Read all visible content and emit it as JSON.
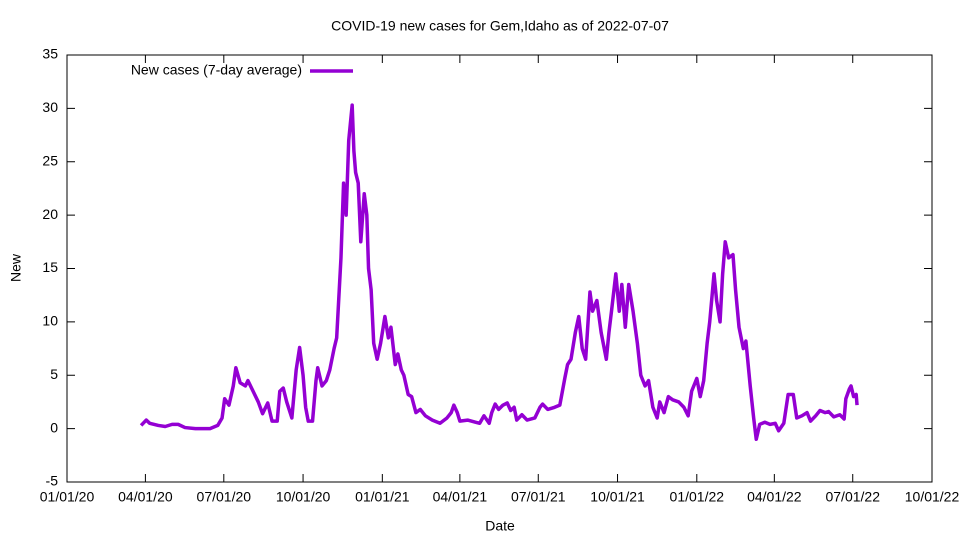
{
  "chart_data": {
    "type": "line",
    "title": "COVID-19 new cases for Gem,Idaho as of 2022-07-07",
    "x_label": "Date",
    "y_label": "New",
    "legend": "upper left",
    "xlim": [
      "2020-01-01",
      "2022-10-01"
    ],
    "xticks": [
      {
        "value": "2020-01-01",
        "label": "01/01/20"
      },
      {
        "value": "2020-04-01",
        "label": "04/01/20"
      },
      {
        "value": "2020-07-01",
        "label": "07/01/20"
      },
      {
        "value": "2020-10-01",
        "label": "10/01/20"
      },
      {
        "value": "2021-01-01",
        "label": "01/01/21"
      },
      {
        "value": "2021-04-01",
        "label": "04/01/21"
      },
      {
        "value": "2021-07-01",
        "label": "07/01/21"
      },
      {
        "value": "2021-10-01",
        "label": "10/01/21"
      },
      {
        "value": "2022-01-01",
        "label": "01/01/22"
      },
      {
        "value": "2022-04-01",
        "label": "04/01/22"
      },
      {
        "value": "2022-07-01",
        "label": "07/01/22"
      },
      {
        "value": "2022-10-01",
        "label": "10/01/22"
      }
    ],
    "ylim": [
      -5,
      35
    ],
    "yticks": [
      -5,
      0,
      5,
      10,
      15,
      20,
      25,
      30,
      35
    ],
    "x": [
      "2020-03-27",
      "2020-04-02",
      "2020-04-06",
      "2020-04-16",
      "2020-04-24",
      "2020-05-02",
      "2020-05-09",
      "2020-05-17",
      "2020-05-29",
      "2020-06-15",
      "2020-06-24",
      "2020-06-29",
      "2020-07-02",
      "2020-07-07",
      "2020-07-12",
      "2020-07-15",
      "2020-07-20",
      "2020-07-26",
      "2020-07-29",
      "2020-08-04",
      "2020-08-10",
      "2020-08-15",
      "2020-08-21",
      "2020-08-26",
      "2020-09-01",
      "2020-09-04",
      "2020-09-08",
      "2020-09-12",
      "2020-09-18",
      "2020-09-23",
      "2020-09-27",
      "2020-10-01",
      "2020-10-04",
      "2020-10-07",
      "2020-10-12",
      "2020-10-16",
      "2020-10-18",
      "2020-10-23",
      "2020-10-28",
      "2020-11-01",
      "2020-11-06",
      "2020-11-09",
      "2020-11-14",
      "2020-11-17",
      "2020-11-20",
      "2020-11-23",
      "2020-11-27",
      "2020-11-29",
      "2020-12-01",
      "2020-12-04",
      "2020-12-07",
      "2020-12-11",
      "2020-12-14",
      "2020-12-16",
      "2020-12-19",
      "2020-12-22",
      "2020-12-26",
      "2020-12-30",
      "2021-01-04",
      "2021-01-08",
      "2021-01-11",
      "2021-01-16",
      "2021-01-19",
      "2021-01-23",
      "2021-01-26",
      "2021-01-31",
      "2021-02-04",
      "2021-02-09",
      "2021-02-14",
      "2021-02-20",
      "2021-02-28",
      "2021-03-09",
      "2021-03-17",
      "2021-03-22",
      "2021-03-25",
      "2021-03-29",
      "2021-04-01",
      "2021-04-10",
      "2021-04-19",
      "2021-04-24",
      "2021-04-29",
      "2021-05-05",
      "2021-05-08",
      "2021-05-12",
      "2021-05-16",
      "2021-05-21",
      "2021-05-26",
      "2021-05-30",
      "2021-06-03",
      "2021-06-06",
      "2021-06-12",
      "2021-06-18",
      "2021-06-27",
      "2021-07-03",
      "2021-07-06",
      "2021-07-12",
      "2021-07-20",
      "2021-07-26",
      "2021-08-01",
      "2021-08-04",
      "2021-08-08",
      "2021-08-13",
      "2021-08-17",
      "2021-08-21",
      "2021-08-25",
      "2021-08-30",
      "2021-09-02",
      "2021-09-07",
      "2021-09-12",
      "2021-09-18",
      "2021-09-21",
      "2021-09-24",
      "2021-09-29",
      "2021-10-03",
      "2021-10-06",
      "2021-10-10",
      "2021-10-14",
      "2021-10-19",
      "2021-10-24",
      "2021-10-28",
      "2021-11-02",
      "2021-11-06",
      "2021-11-11",
      "2021-11-16",
      "2021-11-19",
      "2021-11-24",
      "2021-11-29",
      "2021-12-04",
      "2021-12-11",
      "2021-12-17",
      "2021-12-22",
      "2021-12-26",
      "2022-01-01",
      "2022-01-05",
      "2022-01-09",
      "2022-01-13",
      "2022-01-16",
      "2022-01-21",
      "2022-01-24",
      "2022-01-28",
      "2022-01-31",
      "2022-02-03",
      "2022-02-07",
      "2022-02-12",
      "2022-02-15",
      "2022-02-19",
      "2022-02-24",
      "2022-02-27",
      "2022-03-04",
      "2022-03-08",
      "2022-03-11",
      "2022-03-15",
      "2022-03-21",
      "2022-03-27",
      "2022-04-02",
      "2022-04-06",
      "2022-04-12",
      "2022-04-17",
      "2022-04-23",
      "2022-04-27",
      "2022-05-03",
      "2022-05-09",
      "2022-05-13",
      "2022-05-19",
      "2022-05-24",
      "2022-05-30",
      "2022-06-03",
      "2022-06-09",
      "2022-06-16",
      "2022-06-21",
      "2022-06-23",
      "2022-06-27",
      "2022-06-29",
      "2022-07-02",
      "2022-07-05",
      "2022-07-06"
    ],
    "series": [
      {
        "name": "New cases (7-day average)",
        "color": "#9400d3",
        "values": [
          0.3,
          0.8,
          0.5,
          0.3,
          0.2,
          0.4,
          0.4,
          0.1,
          0,
          0,
          0.3,
          1,
          2.8,
          2.2,
          4,
          5.7,
          4.3,
          4,
          4.5,
          3.5,
          2.5,
          1.4,
          2.4,
          0.7,
          0.7,
          3.5,
          3.8,
          2.5,
          1,
          5.5,
          7.6,
          5,
          2,
          0.7,
          0.7,
          4.5,
          5.7,
          4,
          4.5,
          5.5,
          7.5,
          8.5,
          16,
          23,
          20,
          27,
          30.3,
          26,
          24,
          23,
          17.5,
          22,
          20,
          15,
          13,
          8,
          6.5,
          8,
          10.5,
          8.5,
          9.5,
          6,
          7,
          5.5,
          5,
          3.2,
          3,
          1.5,
          1.8,
          1.2,
          0.8,
          0.5,
          1,
          1.5,
          2.2,
          1.5,
          0.7,
          0.8,
          0.6,
          0.5,
          1.2,
          0.5,
          1.5,
          2.3,
          1.8,
          2.2,
          2.4,
          1.7,
          2,
          0.8,
          1.3,
          0.8,
          1,
          2,
          2.3,
          1.8,
          2,
          2.2,
          4.8,
          6,
          6.5,
          9,
          10.5,
          7.5,
          6.5,
          12.8,
          11,
          12,
          9,
          6.5,
          9,
          11,
          14.5,
          11,
          13.5,
          9.5,
          13.5,
          11,
          8,
          5,
          4,
          4.5,
          2,
          1,
          2.5,
          1.5,
          3,
          2.7,
          2.5,
          2,
          1.2,
          3.5,
          4.7,
          3,
          4.5,
          8,
          10,
          14.5,
          12,
          10,
          14.5,
          17.5,
          16,
          16.3,
          13,
          9.5,
          7.5,
          8.2,
          4,
          1,
          -1,
          0.4,
          0.6,
          0.4,
          0.5,
          -0.2,
          0.5,
          3.2,
          3.2,
          1,
          1.2,
          1.5,
          0.7,
          1.2,
          1.7,
          1.5,
          1.6,
          1.1,
          1.3,
          0.9,
          2.8,
          3.7,
          4,
          3,
          3.2,
          2.2
        ]
      }
    ]
  }
}
